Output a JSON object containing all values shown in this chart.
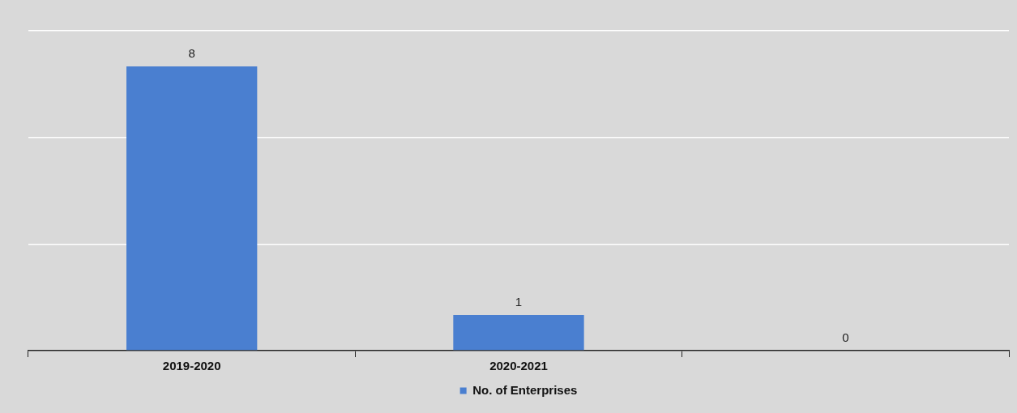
{
  "chart_data": {
    "type": "bar",
    "categories": [
      "2019-2020",
      "2020-2021",
      null
    ],
    "series": [
      {
        "name": "No. of Enterprises",
        "color": "#4a7fd0",
        "values": [
          8,
          1,
          0
        ]
      }
    ],
    "ylim": [
      0,
      9
    ],
    "yticks": [
      {
        "value": 0,
        "label": null
      },
      {
        "value": 3,
        "label": null
      },
      {
        "value": 6,
        "label": null
      },
      {
        "value": 9,
        "label": null
      }
    ],
    "tick_labels": "x",
    "grid": "y",
    "legend": "bottom",
    "data_labels": true
  }
}
